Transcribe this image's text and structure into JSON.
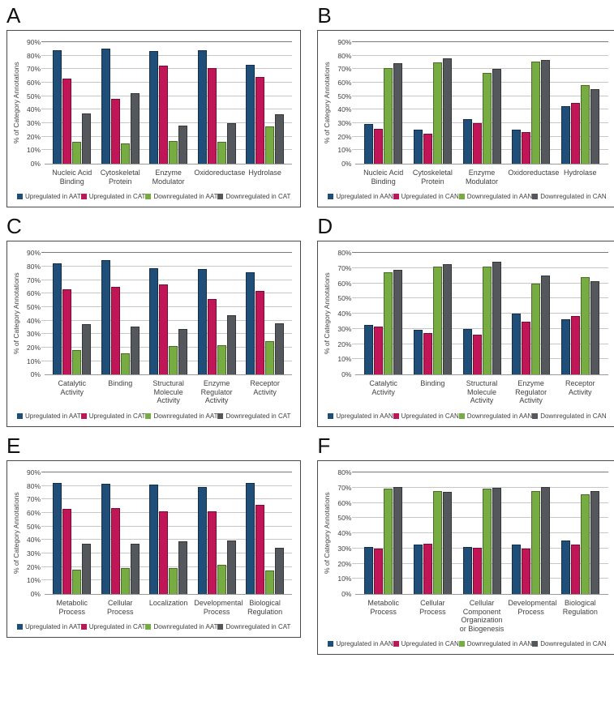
{
  "figure": {
    "background": "#ffffff",
    "ylabel": "% of Category Annotations",
    "palette": {
      "blue": "#1F4E79",
      "crimson": "#C01556",
      "green": "#77AC43",
      "gray": "#54575B"
    }
  },
  "chart_data": [
    {
      "panel": "A",
      "type": "bar",
      "ylabel": "% of Category Annotations",
      "ylim": [
        0,
        90
      ],
      "ytick_step": 10,
      "grid": true,
      "legend_position": "bottom",
      "categories": [
        "Nucleic Acid Binding",
        "Cytoskeletal Protein",
        "Enzyme Modulator",
        "Oxidoreductase",
        "Hydrolase"
      ],
      "series": [
        {
          "name": "Upregulated in AAT",
          "color": "#1F4E79",
          "values": [
            84,
            85,
            83.5,
            84,
            73
          ]
        },
        {
          "name": "Upregulated in CAT",
          "color": "#C01556",
          "values": [
            63,
            48,
            72.5,
            71,
            64
          ]
        },
        {
          "name": "Downregulated in AAT",
          "color": "#77AC43",
          "values": [
            16,
            15,
            17,
            16,
            27.5
          ]
        },
        {
          "name": "Downregulated in CAT",
          "color": "#54575B",
          "values": [
            37,
            52,
            28,
            30,
            36.5
          ]
        }
      ]
    },
    {
      "panel": "B",
      "type": "bar",
      "ylabel": "% of Category Annotations",
      "ylim": [
        0,
        90
      ],
      "ytick_step": 10,
      "grid": true,
      "legend_position": "bottom",
      "categories": [
        "Nucleic Acid Binding",
        "Cytoskeletal Protein",
        "Enzyme Modulator",
        "Oxidoreductase",
        "Hydrolase"
      ],
      "series": [
        {
          "name": "Upregulated in AAN",
          "color": "#1F4E79",
          "values": [
            29.5,
            25.5,
            33,
            25,
            42.5
          ]
        },
        {
          "name": "Upregulated in CAN",
          "color": "#C01556",
          "values": [
            26,
            22.5,
            30,
            23.5,
            45
          ]
        },
        {
          "name": "Downregulated in AAN",
          "color": "#77AC43",
          "values": [
            71,
            75,
            67.5,
            75.5,
            58
          ]
        },
        {
          "name": "Downregulated in CAN",
          "color": "#54575B",
          "values": [
            74.5,
            78,
            70,
            77,
            55
          ]
        }
      ]
    },
    {
      "panel": "C",
      "type": "bar",
      "ylabel": "% of Category Annotations",
      "ylim": [
        0,
        90
      ],
      "ytick_step": 10,
      "grid": true,
      "legend_position": "bottom",
      "categories": [
        "Catalytic Activity",
        "Binding",
        "Structural Molecule Activity",
        "Enzyme Regulator Activity",
        "Receptor Activity"
      ],
      "series": [
        {
          "name": "Upregulated in AAT",
          "color": "#1F4E79",
          "values": [
            82.5,
            84.5,
            79,
            78,
            75.5
          ]
        },
        {
          "name": "Upregulated in CAT",
          "color": "#C01556",
          "values": [
            63,
            65,
            66.5,
            56,
            62
          ]
        },
        {
          "name": "Downregulated in AAT",
          "color": "#77AC43",
          "values": [
            18,
            16,
            21,
            22,
            25
          ]
        },
        {
          "name": "Downregulated in CAT",
          "color": "#54575B",
          "values": [
            37.5,
            35.5,
            34,
            44,
            38
          ]
        }
      ]
    },
    {
      "panel": "D",
      "type": "bar",
      "ylabel": "% of Category Annotations",
      "ylim": [
        0,
        80
      ],
      "ytick_step": 10,
      "grid": true,
      "legend_position": "bottom",
      "categories": [
        "Catalytic Activity",
        "Binding",
        "Structural Molecule Activity",
        "Enzyme Regulator Activity",
        "Receptor Activity"
      ],
      "series": [
        {
          "name": "Upregulated in AAN",
          "color": "#1F4E79",
          "values": [
            32.5,
            29.5,
            30,
            40,
            36.5
          ]
        },
        {
          "name": "Upregulated in CAN",
          "color": "#C01556",
          "values": [
            31.5,
            27.5,
            26,
            35,
            38.5
          ]
        },
        {
          "name": "Downregulated in AAN",
          "color": "#77AC43",
          "values": [
            67.5,
            71,
            71,
            60,
            64
          ]
        },
        {
          "name": "Downregulated in CAN",
          "color": "#54575B",
          "values": [
            69,
            72.5,
            74.5,
            65,
            61.5
          ]
        }
      ]
    },
    {
      "panel": "E",
      "type": "bar",
      "ylabel": "% of Category Annotations",
      "ylim": [
        0,
        90
      ],
      "ytick_step": 10,
      "grid": true,
      "legend_position": "bottom",
      "categories": [
        "Metabolic Process",
        "Cellular Process",
        "Localization",
        "Developmental Process",
        "Biological Regulation"
      ],
      "series": [
        {
          "name": "Upregulated in AAT",
          "color": "#1F4E79",
          "values": [
            82.5,
            81.5,
            81,
            79,
            82.5
          ]
        },
        {
          "name": "Upregulated in CAT",
          "color": "#C01556",
          "values": [
            63,
            63.5,
            61.5,
            61,
            66
          ]
        },
        {
          "name": "Downregulated in AAT",
          "color": "#77AC43",
          "values": [
            18,
            19,
            19.5,
            21.5,
            17.5
          ]
        },
        {
          "name": "Downregulated in CAT",
          "color": "#54575B",
          "values": [
            37,
            37,
            39,
            39.5,
            34
          ]
        }
      ]
    },
    {
      "panel": "F",
      "type": "bar",
      "ylabel": "% of Category Annotations",
      "ylim": [
        0,
        80
      ],
      "ytick_step": 10,
      "grid": true,
      "legend_position": "bottom",
      "categories": [
        "Metabolic Process",
        "Cellular Process",
        "Cellular Component Organization or Biogenesis",
        "Developmental Process",
        "Biological Regulation"
      ],
      "series": [
        {
          "name": "Upregulated in AAN",
          "color": "#1F4E79",
          "values": [
            31,
            32.5,
            31,
            32.5,
            35
          ]
        },
        {
          "name": "Upregulated in CAN",
          "color": "#C01556",
          "values": [
            30,
            33,
            30.5,
            30,
            32.5
          ]
        },
        {
          "name": "Downregulated in AAN",
          "color": "#77AC43",
          "values": [
            69.5,
            67.5,
            69.5,
            67.5,
            65.5
          ]
        },
        {
          "name": "Downregulated in CAN",
          "color": "#54575B",
          "values": [
            70.5,
            67,
            70,
            70.5,
            68
          ]
        }
      ]
    }
  ]
}
